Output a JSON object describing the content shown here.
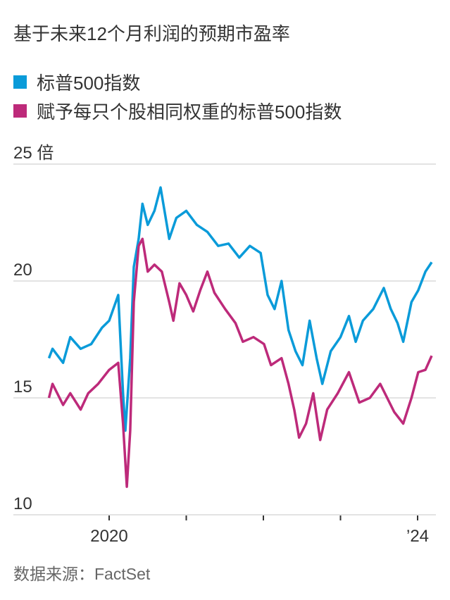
{
  "title": "基于未来12个月利润的预期市盈率",
  "source": "数据来源：FactSet",
  "colors": {
    "sp500": "#0a9bd9",
    "equal_weight": "#bd2a7a",
    "grid": "#e3e3e3",
    "tick": "#333333"
  },
  "chart_data": {
    "type": "line",
    "title": "基于未来12个月利润的预期市盈率",
    "y_unit_label": "倍",
    "ylim": [
      10,
      25
    ],
    "y_ticks": [
      {
        "value": 25,
        "label": "25"
      },
      {
        "value": 20,
        "label": "20"
      },
      {
        "value": 15,
        "label": "15"
      },
      {
        "value": 10,
        "label": "10"
      }
    ],
    "x_ticks": [
      {
        "date": "2020-01-01",
        "label": "2020"
      },
      {
        "date": "2021-01-01",
        "label": ""
      },
      {
        "date": "2022-01-01",
        "label": ""
      },
      {
        "date": "2023-01-01",
        "label": ""
      },
      {
        "date": "2024-01-01",
        "label": "’24"
      }
    ],
    "grid": true,
    "legend_placement": "top-left",
    "series": [
      {
        "name": "标普500指数",
        "color": "#0a9bd9",
        "points": [
          [
            "2019-03-22",
            16.7
          ],
          [
            "2019-04-08",
            17.1
          ],
          [
            "2019-05-28",
            16.5
          ],
          [
            "2019-07-01",
            17.6
          ],
          [
            "2019-08-19",
            17.1
          ],
          [
            "2019-10-08",
            17.3
          ],
          [
            "2019-11-28",
            18.0
          ],
          [
            "2020-01-01",
            18.3
          ],
          [
            "2020-02-13",
            19.4
          ],
          [
            "2020-03-07",
            15.2
          ],
          [
            "2020-03-18",
            13.6
          ],
          [
            "2020-04-10",
            16.7
          ],
          [
            "2020-04-27",
            20.6
          ],
          [
            "2020-05-20",
            21.8
          ],
          [
            "2020-06-07",
            23.3
          ],
          [
            "2020-07-02",
            22.4
          ],
          [
            "2020-08-03",
            23.0
          ],
          [
            "2020-09-01",
            24.0
          ],
          [
            "2020-10-12",
            21.8
          ],
          [
            "2020-11-15",
            22.7
          ],
          [
            "2021-01-01",
            23.0
          ],
          [
            "2021-02-20",
            22.4
          ],
          [
            "2021-04-11",
            22.1
          ],
          [
            "2021-06-01",
            21.5
          ],
          [
            "2021-07-20",
            21.6
          ],
          [
            "2021-09-09",
            21.0
          ],
          [
            "2021-10-29",
            21.5
          ],
          [
            "2021-12-19",
            21.2
          ],
          [
            "2022-01-21",
            19.4
          ],
          [
            "2022-02-23",
            18.8
          ],
          [
            "2022-03-28",
            20.0
          ],
          [
            "2022-04-30",
            17.9
          ],
          [
            "2022-06-02",
            17.0
          ],
          [
            "2022-07-05",
            16.4
          ],
          [
            "2022-08-08",
            18.3
          ],
          [
            "2022-09-10",
            16.7
          ],
          [
            "2022-10-07",
            15.6
          ],
          [
            "2022-11-16",
            17.0
          ],
          [
            "2023-01-01",
            17.6
          ],
          [
            "2023-02-10",
            18.5
          ],
          [
            "2023-03-14",
            17.4
          ],
          [
            "2023-04-17",
            18.3
          ],
          [
            "2023-06-05",
            18.8
          ],
          [
            "2023-07-25",
            19.7
          ],
          [
            "2023-08-27",
            18.8
          ],
          [
            "2023-09-28",
            18.2
          ],
          [
            "2023-10-25",
            17.4
          ],
          [
            "2023-12-03",
            19.1
          ],
          [
            "2024-01-04",
            19.6
          ],
          [
            "2024-02-07",
            20.4
          ],
          [
            "2024-03-08",
            20.8
          ]
        ]
      },
      {
        "name": "赋予每只个股相同权重的标普500指数",
        "color": "#bd2a7a",
        "points": [
          [
            "2019-03-22",
            15.0
          ],
          [
            "2019-04-08",
            15.6
          ],
          [
            "2019-05-28",
            14.7
          ],
          [
            "2019-07-01",
            15.2
          ],
          [
            "2019-08-19",
            14.5
          ],
          [
            "2019-09-24",
            15.2
          ],
          [
            "2019-11-10",
            15.6
          ],
          [
            "2020-01-01",
            16.2
          ],
          [
            "2020-02-13",
            16.5
          ],
          [
            "2020-03-07",
            13.9
          ],
          [
            "2020-03-25",
            11.2
          ],
          [
            "2020-04-10",
            13.6
          ],
          [
            "2020-04-27",
            19.1
          ],
          [
            "2020-05-20",
            21.5
          ],
          [
            "2020-06-07",
            21.8
          ],
          [
            "2020-07-02",
            20.4
          ],
          [
            "2020-08-03",
            20.7
          ],
          [
            "2020-09-07",
            20.4
          ],
          [
            "2020-10-12",
            19.1
          ],
          [
            "2020-11-01",
            18.3
          ],
          [
            "2020-11-30",
            19.9
          ],
          [
            "2021-01-01",
            19.4
          ],
          [
            "2021-02-03",
            18.7
          ],
          [
            "2021-03-08",
            19.6
          ],
          [
            "2021-04-11",
            20.4
          ],
          [
            "2021-05-14",
            19.5
          ],
          [
            "2021-07-04",
            18.8
          ],
          [
            "2021-08-22",
            18.2
          ],
          [
            "2021-09-26",
            17.4
          ],
          [
            "2021-11-15",
            17.6
          ],
          [
            "2022-01-04",
            17.3
          ],
          [
            "2022-02-06",
            16.4
          ],
          [
            "2022-03-28",
            16.7
          ],
          [
            "2022-04-30",
            15.6
          ],
          [
            "2022-05-27",
            14.5
          ],
          [
            "2022-06-19",
            13.3
          ],
          [
            "2022-07-22",
            13.9
          ],
          [
            "2022-08-25",
            15.2
          ],
          [
            "2022-09-27",
            13.2
          ],
          [
            "2022-10-30",
            14.5
          ],
          [
            "2022-12-19",
            15.2
          ],
          [
            "2023-02-10",
            16.1
          ],
          [
            "2023-03-31",
            14.8
          ],
          [
            "2023-05-20",
            15.0
          ],
          [
            "2023-07-08",
            15.6
          ],
          [
            "2023-08-10",
            15.0
          ],
          [
            "2023-09-12",
            14.4
          ],
          [
            "2023-10-25",
            13.9
          ],
          [
            "2023-12-03",
            15.0
          ],
          [
            "2024-01-04",
            16.1
          ],
          [
            "2024-02-07",
            16.2
          ],
          [
            "2024-03-08",
            16.8
          ]
        ]
      }
    ]
  }
}
